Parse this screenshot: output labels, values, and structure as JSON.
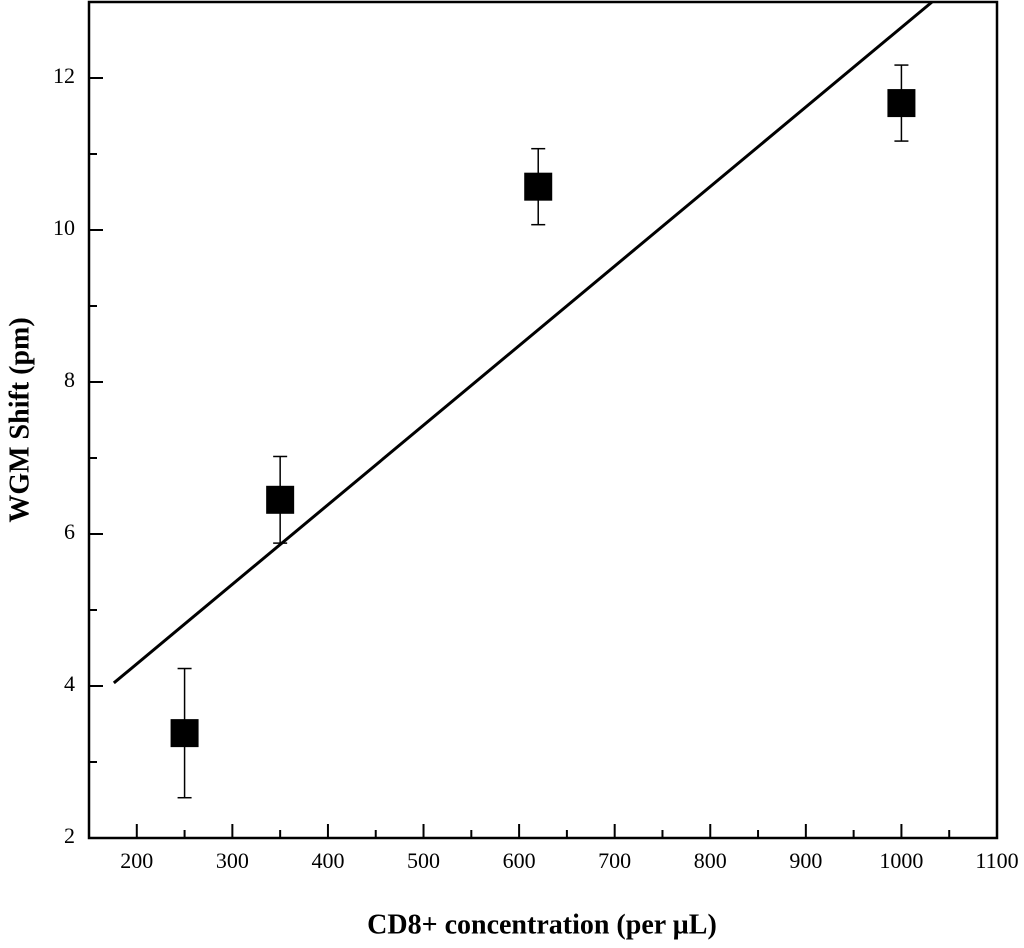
{
  "chart_data": {
    "type": "scatter",
    "xlabel": "CD8+ concentration (per µL)",
    "ylabel": "WGM Shift (pm)",
    "xlim": [
      150,
      1100
    ],
    "ylim": [
      2,
      13
    ],
    "xticks": [
      200,
      300,
      400,
      500,
      600,
      700,
      800,
      900,
      1000,
      1100
    ],
    "xminor": [
      250,
      350,
      450,
      550,
      650,
      750,
      850,
      950,
      1050
    ],
    "yticks": [
      2,
      4,
      6,
      8,
      10,
      12
    ],
    "yminor": [
      3,
      5,
      7,
      9,
      11,
      13
    ],
    "series": [
      {
        "color": "#000000",
        "x": [
          250,
          350,
          620,
          1000
        ],
        "values": [
          3.38,
          6.45,
          10.57,
          11.67
        ],
        "errors": [
          0.85,
          0.57,
          0.5,
          0.5
        ]
      }
    ],
    "fit": {
      "color": "#000000",
      "x": [
        176,
        1032
      ],
      "values": [
        4.04,
        13.0
      ]
    }
  }
}
